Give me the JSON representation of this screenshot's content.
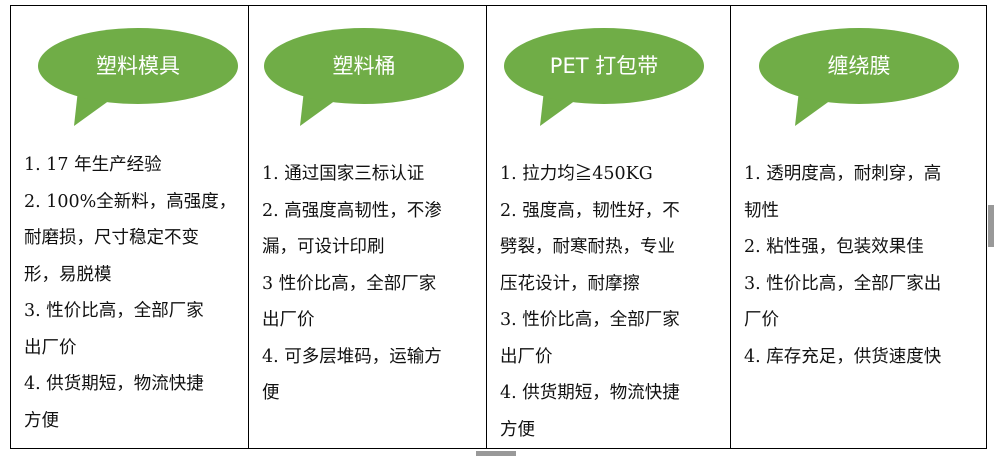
{
  "theme": {
    "bubble_color": "#70AD47",
    "text_color": "#111111",
    "bubble_text_color": "#FFFFFF"
  },
  "columns": [
    {
      "title": "塑料模具",
      "items": [
        [
          "1. 17 年生产经验"
        ],
        [
          "2. 100%全新料，高强度，",
          "耐磨损，尺寸稳定不变",
          "形，易脱模"
        ],
        [
          "3. 性价比高，全部厂家",
          "出厂价"
        ],
        [
          "4. 供货期短，物流快捷",
          "方便"
        ]
      ]
    },
    {
      "title": "塑料桶",
      "items": [
        [
          "1. 通过国家三标认证"
        ],
        [
          "2. 高强度高韧性，不渗",
          "漏，可设计印刷"
        ],
        [
          "3 性价比高，全部厂家",
          "出厂价"
        ],
        [
          "4. 可多层堆码，运输方",
          "便"
        ]
      ]
    },
    {
      "title": "PET 打包带",
      "items": [
        [
          "1. 拉力均≧450KG"
        ],
        [
          "2. 强度高，韧性好，不",
          "劈裂，耐寒耐热，专业",
          "压花设计，耐摩擦"
        ],
        [
          "3. 性价比高，全部厂家",
          "出厂价"
        ],
        [
          "4. 供货期短，物流快捷",
          "方便"
        ]
      ]
    },
    {
      "title": "缠绕膜",
      "items": [
        [
          "1. 透明度高，耐刺穿，高",
          "韧性"
        ],
        [
          "2. 粘性强，包装效果佳"
        ],
        [
          "3. 性价比高，全部厂家出",
          "厂价"
        ],
        [
          "4. 库存充足，供货速度快"
        ]
      ]
    }
  ]
}
